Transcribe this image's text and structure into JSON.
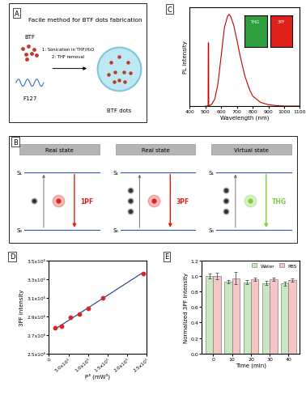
{
  "chart_data": [
    {
      "panel": "C",
      "type": "line",
      "x_label": "Wavelength (nm)",
      "y_label": "PL intensity",
      "x": [
        500,
        517,
        518,
        520,
        521,
        540,
        560,
        580,
        600,
        620,
        640,
        650,
        660,
        680,
        700,
        720,
        750,
        780,
        800,
        850,
        900,
        950,
        1000,
        1100
      ],
      "values": [
        0,
        0,
        0.69,
        0.69,
        0,
        0.02,
        0.08,
        0.25,
        0.55,
        0.85,
        0.98,
        1.0,
        0.98,
        0.88,
        0.72,
        0.55,
        0.33,
        0.18,
        0.11,
        0.04,
        0.015,
        0.005,
        0,
        0
      ],
      "color": "#c00000",
      "xlim": [
        400,
        1100
      ],
      "xticks": [
        400,
        500,
        600,
        700,
        800,
        900,
        1000,
        1100
      ],
      "ylim": [
        0,
        1.08
      ],
      "yticks": [],
      "tick_labels": "x",
      "insets": [
        {
          "label": "THG",
          "color": "#2e9e3e"
        },
        {
          "label": "3PF",
          "color": "#e0201b"
        }
      ]
    },
    {
      "panel": "D",
      "type": "scatter",
      "x_label": "P³ (mW³)",
      "y_label": "3PF intensity",
      "series": [
        {
          "type": "scatter",
          "marker": "circle",
          "color": "#d62728",
          "x": [
            15000,
            32000,
            55000,
            78000,
            100000,
            138000,
            240000
          ],
          "values": [
            2775000,
            2790000,
            2890000,
            2920000,
            2980000,
            3100000,
            3360000
          ]
        },
        {
          "type": "line",
          "line_style": "solid",
          "color": "#1f3b8c",
          "x": [
            15000,
            240000
          ],
          "values": [
            2760000,
            3370000
          ]
        }
      ],
      "xlim": [
        0,
        250000
      ],
      "xticks": [
        0,
        {
          "value": 50000,
          "label": "5.0x10⁴"
        },
        {
          "value": 100000,
          "label": "1.0x10⁵"
        },
        {
          "value": 150000,
          "label": "1.5x10⁵"
        },
        {
          "value": 200000,
          "label": "2.0x10⁵"
        },
        {
          "value": 250000,
          "label": "2.5x10⁵"
        }
      ],
      "ylim": [
        2500000,
        3500000
      ],
      "yticks": [
        {
          "value": 2500000,
          "label": "2.5x10⁶"
        },
        {
          "value": 2700000,
          "label": "2.7x10⁶"
        },
        {
          "value": 2900000,
          "label": "2.9x10⁶"
        },
        {
          "value": 3100000,
          "label": "3.1x10⁶"
        },
        {
          "value": 3300000,
          "label": "3.3x10⁶"
        },
        {
          "value": 3500000,
          "label": "3.5x10⁶"
        }
      ]
    },
    {
      "panel": "E",
      "type": "bar",
      "x_label": "Time (min)",
      "y_label": "Normalized 3PF intensity",
      "categories": [
        "0",
        "10",
        "20",
        "30",
        "40"
      ],
      "series": [
        {
          "name": "Water",
          "color": "#c9e8c1",
          "values": [
            1.0,
            0.93,
            0.92,
            0.91,
            0.9
          ],
          "errors": [
            0.03,
            0.02,
            0.03,
            0.03,
            0.03
          ]
        },
        {
          "name": "PBS",
          "color": "#f4c6c6",
          "values": [
            1.0,
            0.97,
            0.96,
            0.96,
            0.95
          ],
          "errors": [
            0.04,
            0.08,
            0.02,
            0.02,
            0.02
          ]
        }
      ],
      "ylim": [
        0.0,
        1.2
      ],
      "yticks": [
        0.0,
        0.2,
        0.4,
        0.6,
        0.8,
        1.0,
        1.2
      ],
      "legend": "upper right"
    }
  ],
  "diagrams": {
    "A": {
      "panel": "A",
      "title": "Facile method for BTF dots fabrication",
      "reagents": [
        "BTF",
        "F127"
      ],
      "steps": [
        "1: Sonication in THF/H₂O",
        "2: THF removal"
      ],
      "product": "BTF dots"
    },
    "B": {
      "panel": "B",
      "columns": [
        {
          "header": "Real state",
          "upper": "S₁",
          "lower": "S₀",
          "emission": "1PF",
          "photons": 1,
          "color": "#e0201b"
        },
        {
          "header": "Real state",
          "upper": "S₁",
          "lower": "S₀",
          "emission": "3PF",
          "photons": 3,
          "color": "#e0201b"
        },
        {
          "header": "Virtual state",
          "upper": "S₁",
          "lower": "S₀",
          "emission": "THG",
          "photons": 3,
          "color": "#7ccf3a"
        }
      ]
    }
  }
}
